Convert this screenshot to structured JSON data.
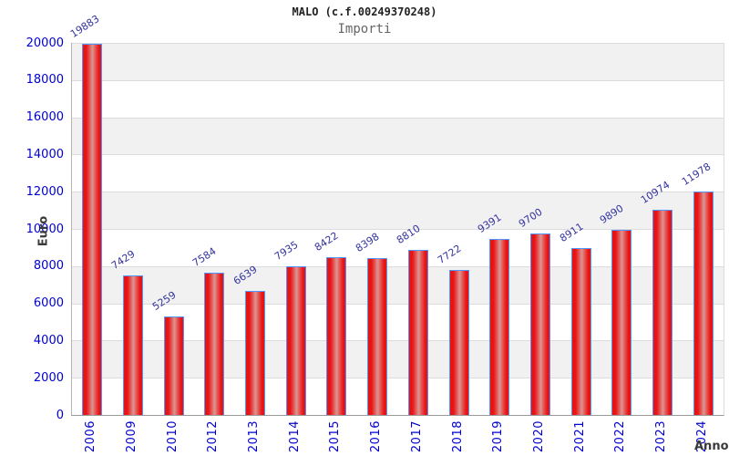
{
  "header": {
    "title": "MALO (c.f.00249370248)",
    "subtitle": "Importi"
  },
  "chart_data": {
    "type": "bar",
    "title": "MALO (c.f.00249370248)",
    "subtitle": "Importi",
    "xlabel": "Anno",
    "ylabel": "Euro",
    "categories": [
      "2006",
      "2009",
      "2010",
      "2012",
      "2013",
      "2014",
      "2015",
      "2016",
      "2017",
      "2018",
      "2019",
      "2020",
      "2021",
      "2022",
      "2023",
      "2024"
    ],
    "values": [
      19883,
      7429,
      5259,
      7584,
      6639,
      7935,
      8422,
      8398,
      8810,
      7722,
      9391,
      9700,
      8911,
      9890,
      10974,
      11978
    ],
    "ylim": [
      0,
      20000
    ],
    "ytick_step": 2000,
    "ytick_labels": [
      "0",
      "2000",
      "4000",
      "6000",
      "8000",
      "10000",
      "12000",
      "14000",
      "16000",
      "18000",
      "20000"
    ],
    "grid": "horizontal gridlines every 2000 with alternating gray/white bands, gray band at top",
    "legend": "none",
    "value_labels": "above each bar, rotated diagonally",
    "x_tick_rotation": "vertical"
  },
  "colors": {
    "bar_fill": "#e81414",
    "bar_highlight": "#dc9694",
    "bar_border": "#4f97ff",
    "tick_label": "#0000d0",
    "value_label": "#3333a0",
    "band_gray": "#f1f1f1",
    "grid": "#dcdcdc",
    "axis": "#9a9a9a",
    "title": "#222222",
    "subtitle": "#666666",
    "axis_title": "#3a3a3a"
  }
}
